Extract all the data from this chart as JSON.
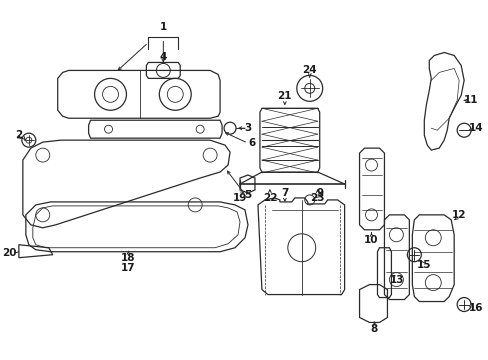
{
  "bg_color": "#ffffff",
  "line_color": "#2a2a2a",
  "parts_layout": "automotive_diagram",
  "label_fs": 7.5,
  "lw": 0.9
}
